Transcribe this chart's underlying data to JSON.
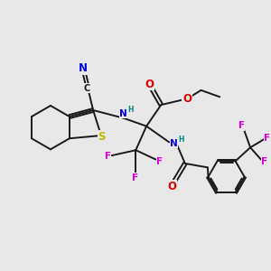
{
  "bg_color": "#e8e8e8",
  "bond_color": "#1a1a1a",
  "bond_lw": 1.4,
  "atom_colors": {
    "N": "#0000dd",
    "O": "#dd0000",
    "S": "#bbbb00",
    "F": "#dd00dd",
    "H": "#008888",
    "C": "#1a1a1a"
  },
  "fs": 7.5,
  "xlim": [
    0,
    10
  ],
  "ylim": [
    0,
    10
  ]
}
